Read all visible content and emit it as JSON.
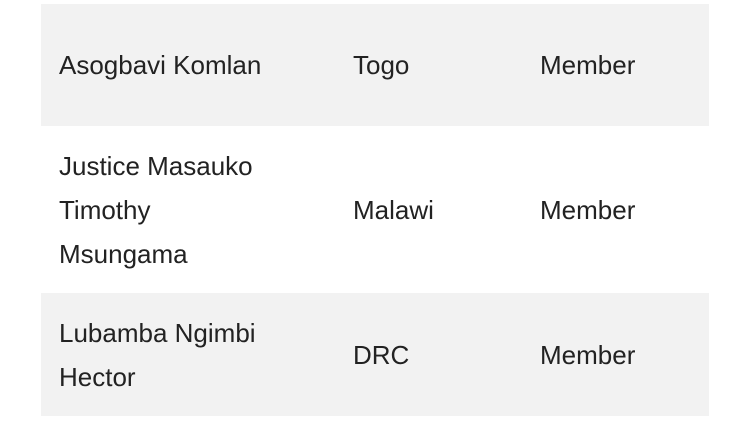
{
  "table": {
    "rows": [
      {
        "name": [
          "Asogbavi Komlan"
        ],
        "country": "Togo",
        "role": "Member"
      },
      {
        "name": [
          "Justice Masauko",
          "Timothy",
          "Msungama"
        ],
        "country": "Malawi",
        "role": "Member"
      },
      {
        "name": [
          "Lubamba Ngimbi",
          "Hector"
        ],
        "country": "DRC",
        "role": "Member"
      }
    ]
  },
  "colors": {
    "row_alt_bg": "#f2f2f2",
    "text": "#222222"
  }
}
